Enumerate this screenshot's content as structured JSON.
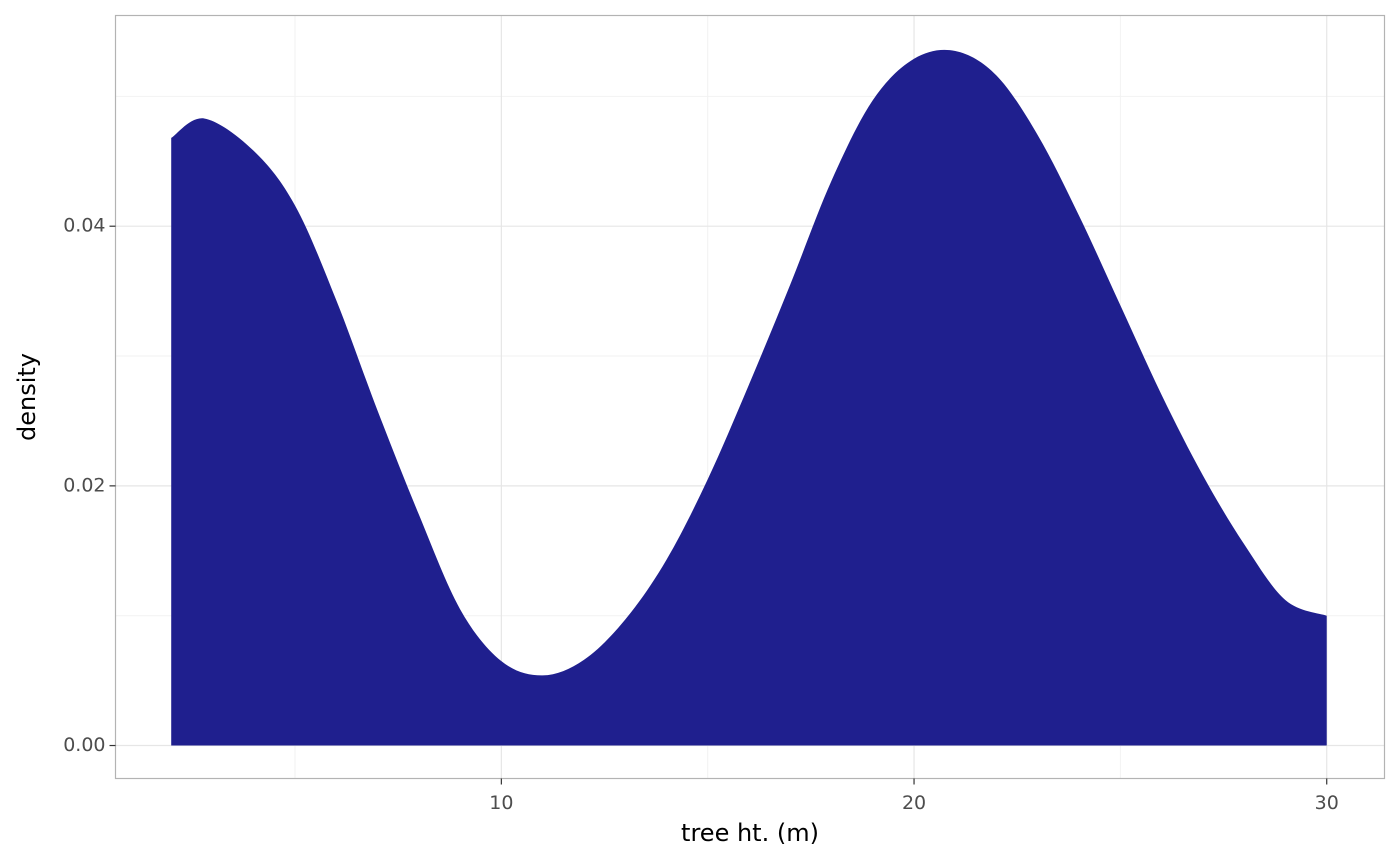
{
  "chart_data": {
    "type": "area",
    "x": [
      2.0,
      2.8,
      4,
      5,
      6,
      7,
      8,
      9,
      10,
      11,
      12,
      13,
      14,
      15,
      16,
      17,
      18,
      19,
      20,
      21,
      22,
      23,
      24,
      25,
      26,
      27,
      28,
      29,
      30
    ],
    "values": [
      0.0468,
      0.0483,
      0.0458,
      0.0416,
      0.0343,
      0.0258,
      0.0178,
      0.0105,
      0.0065,
      0.0054,
      0.0066,
      0.0097,
      0.0143,
      0.0205,
      0.0278,
      0.0355,
      0.0435,
      0.0497,
      0.0529,
      0.0535,
      0.0516,
      0.047,
      0.0408,
      0.0339,
      0.027,
      0.0208,
      0.0155,
      0.0112,
      0.01
    ],
    "color": "#1f1f8e",
    "xlabel": "tree ht. (m)",
    "ylabel": "density",
    "xlim": [
      0.65,
      31.4
    ],
    "ylim": [
      -0.00254,
      0.05623
    ],
    "xticks": [
      10,
      20,
      30
    ],
    "yticks": [
      {
        "value": 0,
        "label": "0.00"
      },
      {
        "value": 0.02,
        "label": "0.02"
      },
      {
        "value": 0.04,
        "label": "0.04"
      }
    ],
    "grid": true
  }
}
